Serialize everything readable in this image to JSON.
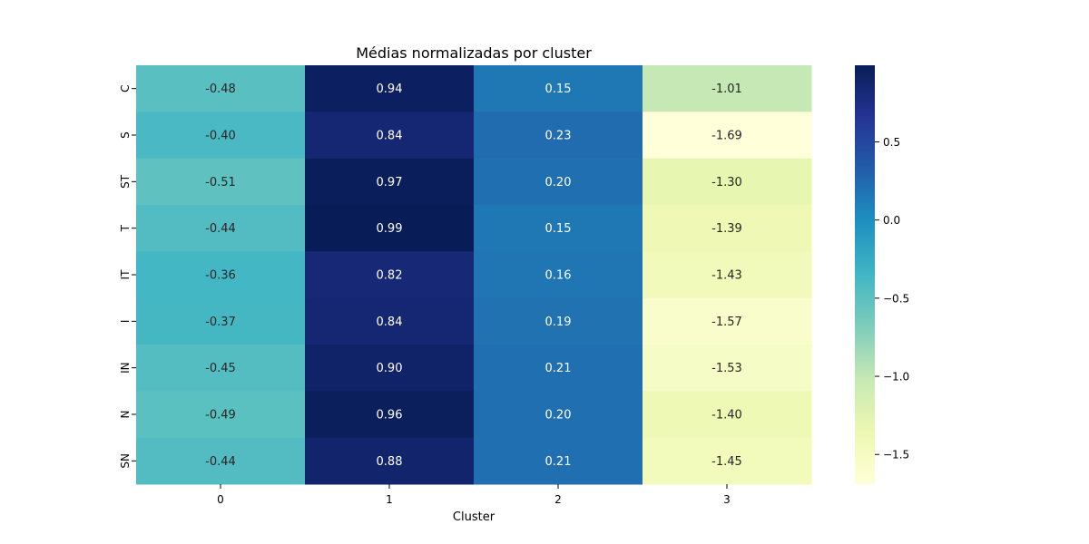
{
  "chart_data": {
    "type": "heatmap",
    "title": "Médias normalizadas por cluster",
    "xlabel": "Cluster",
    "ylabel": "",
    "columns": [
      "0",
      "1",
      "2",
      "3"
    ],
    "rows": [
      "C",
      "S",
      "ST",
      "T",
      "IT",
      "I",
      "IN",
      "N",
      "SN"
    ],
    "values": [
      [
        -0.48,
        0.94,
        0.15,
        -1.01
      ],
      [
        -0.4,
        0.84,
        0.23,
        -1.69
      ],
      [
        -0.51,
        0.97,
        0.2,
        -1.3
      ],
      [
        -0.44,
        0.99,
        0.15,
        -1.39
      ],
      [
        -0.36,
        0.82,
        0.16,
        -1.43
      ],
      [
        -0.37,
        0.84,
        0.19,
        -1.57
      ],
      [
        -0.45,
        0.9,
        0.21,
        -1.53
      ],
      [
        -0.49,
        0.96,
        0.2,
        -1.4
      ],
      [
        -0.44,
        0.88,
        0.21,
        -1.45
      ]
    ],
    "value_labels": [
      [
        "-0.48",
        "0.94",
        "0.15",
        "-1.01"
      ],
      [
        "-0.40",
        "0.84",
        "0.23",
        "-1.69"
      ],
      [
        "-0.51",
        "0.97",
        "0.20",
        "-1.30"
      ],
      [
        "-0.44",
        "0.99",
        "0.15",
        "-1.39"
      ],
      [
        "-0.36",
        "0.82",
        "0.16",
        "-1.43"
      ],
      [
        "-0.37",
        "0.84",
        "0.19",
        "-1.57"
      ],
      [
        "-0.45",
        "0.90",
        "0.21",
        "-1.53"
      ],
      [
        "-0.49",
        "0.96",
        "0.20",
        "-1.40"
      ],
      [
        "-0.44",
        "0.88",
        "0.21",
        "-1.45"
      ]
    ],
    "colormap": "YlGnBu",
    "colorbar": {
      "range": [
        -1.69,
        0.99
      ],
      "ticks": [
        -1.5,
        -1.0,
        -0.5,
        0.0,
        0.5
      ],
      "tick_labels": [
        "−1.5",
        "−1.0",
        "−0.5",
        "0.0",
        "0.5"
      ]
    },
    "grid": false,
    "legend": "colorbar-right"
  }
}
